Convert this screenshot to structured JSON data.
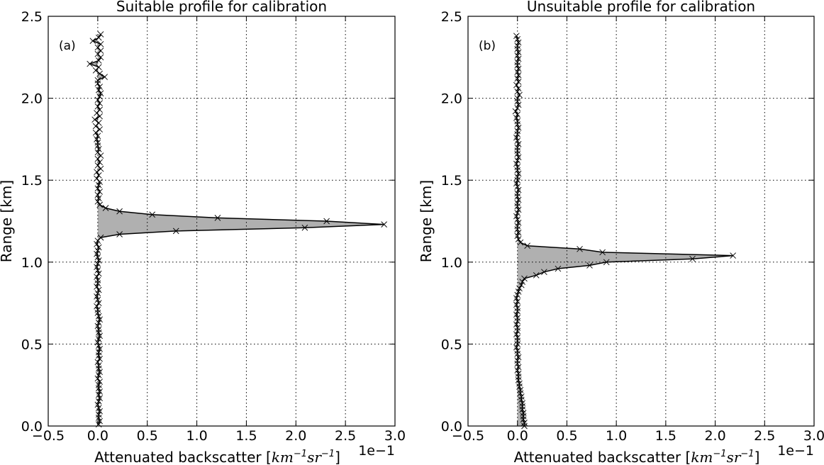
{
  "chart_data": [
    {
      "type": "line",
      "title": "Suitable profile for calibration",
      "panel_label": "(a)",
      "xlabel_text": "Attenuated backscatter [",
      "xlabel_unit": [
        "km",
        "−1",
        "sr",
        "−1"
      ],
      "xlabel_close": "]",
      "x_offset_text": "1e−1",
      "ylabel": "Range [km]",
      "xlim": [
        -0.5,
        3.0
      ],
      "ylim": [
        0.0,
        2.5
      ],
      "xticks": [
        "−0.5",
        "0.0",
        "0.5",
        "1.0",
        "1.5",
        "2.0",
        "2.5",
        "3.0"
      ],
      "yticks": [
        "0.0",
        "0.5",
        "1.0",
        "1.5",
        "2.0",
        "2.5"
      ],
      "grid": true,
      "fill_to_zero": true,
      "fill_color": "#b0b0b0",
      "line_color": "#000000",
      "marker": "x",
      "range_km": [
        0.01,
        0.03,
        0.05,
        0.07,
        0.09,
        0.11,
        0.13,
        0.15,
        0.17,
        0.19,
        0.21,
        0.23,
        0.25,
        0.27,
        0.29,
        0.31,
        0.33,
        0.35,
        0.37,
        0.39,
        0.41,
        0.43,
        0.45,
        0.47,
        0.49,
        0.51,
        0.53,
        0.55,
        0.57,
        0.59,
        0.61,
        0.63,
        0.65,
        0.67,
        0.69,
        0.71,
        0.73,
        0.75,
        0.77,
        0.79,
        0.81,
        0.83,
        0.85,
        0.87,
        0.89,
        0.91,
        0.93,
        0.95,
        0.97,
        0.99,
        1.01,
        1.03,
        1.05,
        1.07,
        1.09,
        1.11,
        1.13,
        1.15,
        1.17,
        1.19,
        1.21,
        1.23,
        1.25,
        1.27,
        1.29,
        1.31,
        1.33,
        1.35,
        1.37,
        1.39,
        1.41,
        1.43,
        1.45,
        1.47,
        1.49,
        1.51,
        1.53,
        1.55,
        1.57,
        1.59,
        1.61,
        1.63,
        1.65,
        1.67,
        1.69,
        1.71,
        1.73,
        1.75,
        1.77,
        1.79,
        1.81,
        1.83,
        1.85,
        1.87,
        1.89,
        1.91,
        1.93,
        1.95,
        1.97,
        1.99,
        2.01,
        2.03,
        2.05,
        2.07,
        2.09,
        2.11,
        2.13,
        2.15,
        2.17,
        2.19,
        2.21,
        2.23,
        2.25,
        2.27,
        2.29,
        2.31,
        2.33,
        2.35,
        2.37,
        2.39
      ],
      "backscatter": [
        0.01,
        0.02,
        0.01,
        0.01,
        0.02,
        0.01,
        0.0,
        0.01,
        0.02,
        0.01,
        0.02,
        0.01,
        0.01,
        0.02,
        0.0,
        0.01,
        0.02,
        0.01,
        0.01,
        0.0,
        0.02,
        0.01,
        0.01,
        0.02,
        0.01,
        0.0,
        0.01,
        0.02,
        0.01,
        0.01,
        0.0,
        0.01,
        0.02,
        0.01,
        0.0,
        0.0,
        -0.01,
        0.01,
        0.0,
        -0.01,
        0.0,
        0.01,
        -0.01,
        0.0,
        0.0,
        -0.01,
        0.01,
        0.0,
        -0.01,
        0.0,
        0.01,
        0.0,
        -0.01,
        0.0,
        0.01,
        -0.01,
        0.0,
        0.03,
        0.22,
        0.79,
        2.09,
        2.89,
        2.31,
        1.21,
        0.55,
        0.22,
        0.08,
        0.02,
        0.0,
        0.01,
        0.0,
        0.02,
        0.0,
        0.01,
        0.02,
        -0.01,
        0.01,
        -0.01,
        0.03,
        0.0,
        0.02,
        0.0,
        0.03,
        0.0,
        0.01,
        0.0,
        0.0,
        -0.01,
        0.0,
        -0.02,
        0.02,
        -0.02,
        0.01,
        -0.03,
        0.02,
        -0.01,
        0.02,
        0.0,
        0.02,
        0.0,
        0.02,
        0.03,
        0.01,
        0.02,
        0.0,
        0.0,
        0.07,
        0.02,
        -0.02,
        0.01,
        -0.08,
        0.01,
        0.03,
        0.0,
        0.03,
        0.0,
        0.03,
        -0.05,
        0.01,
        0.03
      ]
    },
    {
      "type": "line",
      "title": "Unsuitable profile for calibration",
      "panel_label": "(b)",
      "xlabel_text": "Attenuated backscatter [",
      "xlabel_unit": [
        "km",
        "−1",
        "sr",
        "−1"
      ],
      "xlabel_close": "]",
      "x_offset_text": "1e−1",
      "ylabel": "Range [km]",
      "xlim": [
        -0.5,
        3.0
      ],
      "ylim": [
        0.0,
        2.5
      ],
      "xticks": [
        "−0.5",
        "0.0",
        "0.5",
        "1.0",
        "1.5",
        "2.0",
        "2.5",
        "3.0"
      ],
      "yticks": [
        "0.0",
        "0.5",
        "1.0",
        "1.5",
        "2.0",
        "2.5"
      ],
      "grid": true,
      "fill_to_zero": true,
      "fill_color": "#b0b0b0",
      "line_color": "#000000",
      "marker": "x",
      "range_km": [
        0.0,
        0.02,
        0.04,
        0.06,
        0.08,
        0.1,
        0.12,
        0.14,
        0.16,
        0.18,
        0.2,
        0.22,
        0.24,
        0.26,
        0.28,
        0.3,
        0.32,
        0.34,
        0.36,
        0.38,
        0.4,
        0.42,
        0.44,
        0.46,
        0.48,
        0.5,
        0.52,
        0.54,
        0.56,
        0.58,
        0.6,
        0.62,
        0.64,
        0.66,
        0.68,
        0.7,
        0.72,
        0.74,
        0.76,
        0.78,
        0.8,
        0.82,
        0.84,
        0.86,
        0.88,
        0.9,
        0.92,
        0.94,
        0.96,
        0.98,
        1.0,
        1.02,
        1.04,
        1.06,
        1.08,
        1.1,
        1.12,
        1.14,
        1.16,
        1.18,
        1.2,
        1.22,
        1.24,
        1.26,
        1.28,
        1.3,
        1.32,
        1.34,
        1.36,
        1.38,
        1.4,
        1.42,
        1.44,
        1.46,
        1.48,
        1.5,
        1.52,
        1.54,
        1.56,
        1.58,
        1.6,
        1.62,
        1.64,
        1.66,
        1.68,
        1.7,
        1.72,
        1.74,
        1.76,
        1.78,
        1.8,
        1.82,
        1.84,
        1.86,
        1.88,
        1.9,
        1.92,
        1.94,
        1.96,
        1.98,
        2.0,
        2.02,
        2.04,
        2.06,
        2.08,
        2.1,
        2.12,
        2.14,
        2.16,
        2.18,
        2.2,
        2.22,
        2.24,
        2.26,
        2.28,
        2.3,
        2.32,
        2.34,
        2.36,
        2.38
      ],
      "backscatter": [
        0.07,
        0.07,
        0.06,
        0.06,
        0.06,
        0.05,
        0.05,
        0.05,
        0.04,
        0.04,
        0.03,
        0.03,
        0.02,
        0.02,
        0.01,
        0.01,
        0.01,
        0.0,
        0.01,
        0.0,
        0.0,
        0.01,
        0.0,
        0.0,
        -0.01,
        0.0,
        0.0,
        0.0,
        -0.01,
        0.0,
        0.0,
        -0.01,
        0.0,
        0.0,
        -0.01,
        0.0,
        0.0,
        -0.01,
        0.0,
        -0.01,
        0.0,
        0.01,
        0.02,
        0.04,
        0.05,
        0.07,
        0.19,
        0.27,
        0.41,
        0.73,
        0.9,
        1.77,
        2.18,
        0.86,
        0.63,
        0.1,
        0.03,
        0.01,
        0.0,
        0.01,
        0.0,
        0.0,
        0.01,
        0.0,
        -0.01,
        0.0,
        0.01,
        0.0,
        0.0,
        0.01,
        0.0,
        0.0,
        0.01,
        0.0,
        -0.01,
        0.0,
        0.0,
        0.01,
        0.0,
        0.0,
        -0.01,
        0.0,
        0.01,
        0.0,
        0.0,
        0.0,
        0.01,
        0.0,
        -0.01,
        0.0,
        0.0,
        0.01,
        0.0,
        0.0,
        -0.01,
        0.0,
        -0.02,
        0.0,
        0.01,
        0.0,
        0.0,
        0.02,
        0.0,
        0.01,
        -0.01,
        0.01,
        0.0,
        0.01,
        0.0,
        0.01,
        0.0,
        0.0,
        0.01,
        0.0,
        0.01,
        0.0,
        0.0,
        0.01,
        0.0,
        -0.01
      ]
    }
  ]
}
